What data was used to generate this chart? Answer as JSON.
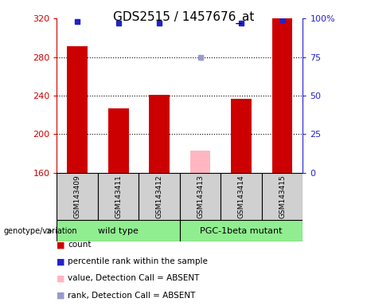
{
  "title": "GDS2515 / 1457676_at",
  "samples": [
    "GSM143409",
    "GSM143411",
    "GSM143412",
    "GSM143413",
    "GSM143414",
    "GSM143415"
  ],
  "count_values": [
    291,
    227,
    241,
    null,
    237,
    320
  ],
  "count_absent": [
    null,
    null,
    null,
    183,
    null,
    null
  ],
  "percentile_present": [
    98,
    97,
    97,
    null,
    97,
    99
  ],
  "percentile_absent": [
    null,
    null,
    null,
    75,
    null,
    null
  ],
  "ylim_left": [
    160,
    320
  ],
  "ylim_right": [
    0,
    100
  ],
  "yticks_left": [
    160,
    200,
    240,
    280,
    320
  ],
  "yticks_right": [
    0,
    25,
    50,
    75,
    100
  ],
  "bar_width": 0.5,
  "colors": {
    "count_present": "#CC0000",
    "count_absent": "#FFB6C1",
    "rank_present": "#2222CC",
    "rank_absent": "#9999CC",
    "background_label": "#D0D0D0",
    "background_group": "#90EE90"
  },
  "legend": [
    {
      "color": "#CC0000",
      "label": "count"
    },
    {
      "color": "#2222CC",
      "label": "percentile rank within the sample"
    },
    {
      "color": "#FFB6C1",
      "label": "value, Detection Call = ABSENT"
    },
    {
      "color": "#9999CC",
      "label": "rank, Detection Call = ABSENT"
    }
  ],
  "left_axis_color": "#CC0000",
  "right_axis_color": "#2222CC"
}
